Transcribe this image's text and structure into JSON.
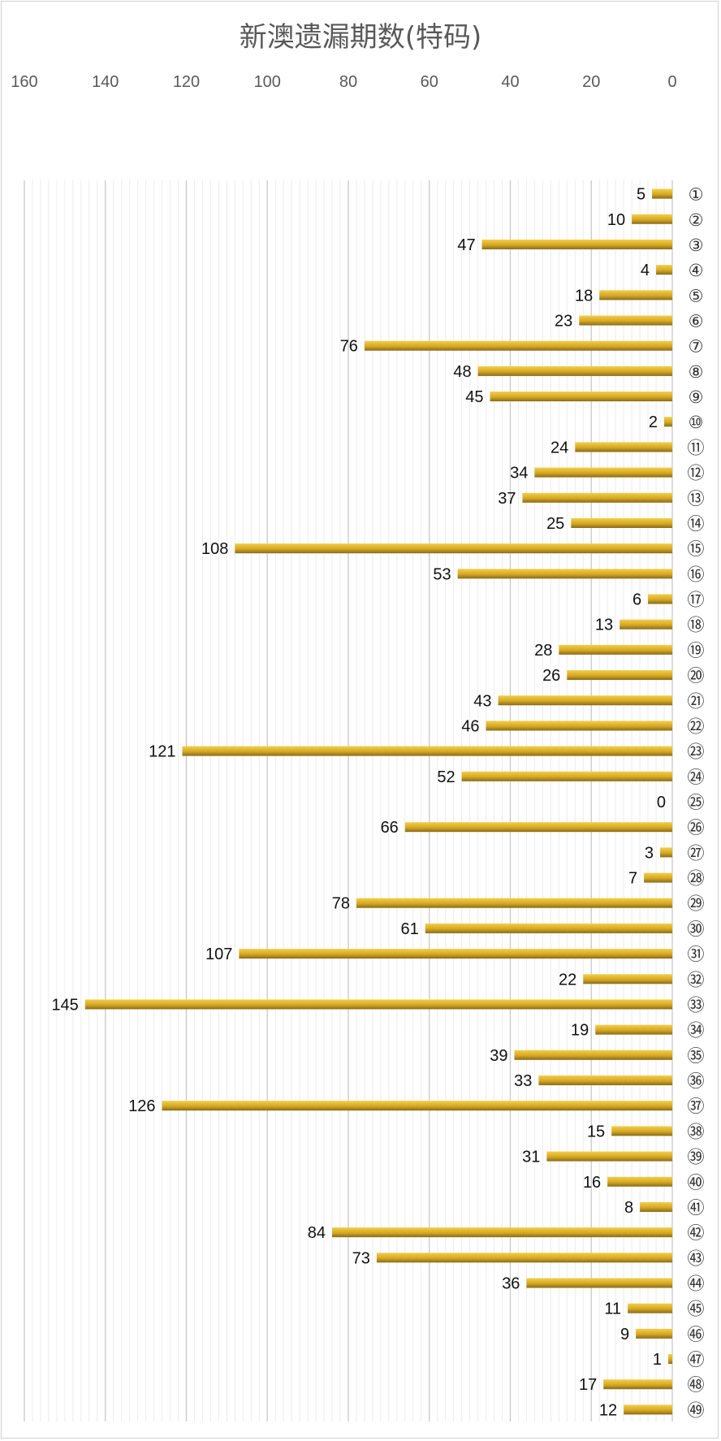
{
  "chart_data": {
    "type": "bar",
    "orientation": "horizontal-reversed",
    "title": "新澳遗漏期数(特码)",
    "xlabel": "",
    "ylabel": "",
    "xlim": [
      0,
      160
    ],
    "x_ticks": [
      160,
      140,
      120,
      100,
      80,
      60,
      40,
      20,
      0
    ],
    "grid": true,
    "categories": [
      "①",
      "②",
      "③",
      "④",
      "⑤",
      "⑥",
      "⑦",
      "⑧",
      "⑨",
      "⑩",
      "⑪",
      "⑫",
      "⑬",
      "⑭",
      "⑮",
      "⑯",
      "⑰",
      "⑱",
      "⑲",
      "⑳",
      "㉑",
      "㉒",
      "㉓",
      "㉔",
      "㉕",
      "㉖",
      "㉗",
      "㉘",
      "㉙",
      "㉚",
      "㉛",
      "㉜",
      "㉝",
      "㉞",
      "㉟",
      "㊱",
      "㊲",
      "㊳",
      "㊴",
      "㊵",
      "㊶",
      "㊷",
      "㊸",
      "㊹",
      "㊺",
      "㊻",
      "㊼",
      "㊽",
      "㊾"
    ],
    "values": [
      5,
      10,
      47,
      4,
      18,
      23,
      76,
      48,
      45,
      2,
      24,
      34,
      37,
      25,
      108,
      53,
      6,
      13,
      28,
      26,
      43,
      46,
      121,
      52,
      0,
      66,
      3,
      7,
      78,
      61,
      107,
      22,
      145,
      19,
      39,
      33,
      126,
      15,
      31,
      16,
      8,
      84,
      73,
      36,
      11,
      9,
      1,
      17,
      12
    ],
    "bar_color": "#d4a82a",
    "title_color": "#595959"
  }
}
